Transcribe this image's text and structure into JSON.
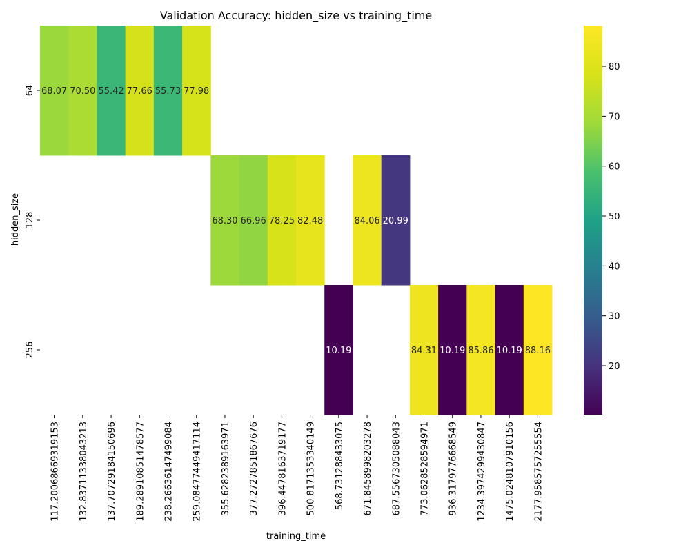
{
  "chart_data": {
    "type": "heatmap",
    "title": "Validation Accuracy: hidden_size vs training_time",
    "xlabel": "training_time",
    "ylabel": "hidden_size",
    "x_categories": [
      "117.20068669319153",
      "132.83711338043213",
      "137.70729184150696",
      "189.28910851478577",
      "238.26636147499084",
      "259.08477449417114",
      "355.6282389163971",
      "377.2727851867676",
      "396.4478163719177",
      "500.8171353340149",
      "568.7312884330750",
      "671.8458998203278",
      "687.5567305088043",
      "773.0628528594971",
      "936.3179776668549",
      "1234.397429943084",
      "1475.0248107910156",
      "2177.9585757255554"
    ],
    "x_tick_labels": [
      "117.20068669319153",
      "132.83711338043213",
      "137.70729184150696",
      "189.28910851478577",
      "238.26636147499084",
      "259.08477449417114",
      "355.6282389163971",
      "377.2727851867676",
      "396.4478163719177",
      "500.8171353340149",
      "568.731288433075",
      "671.8458998203278",
      "687.5567305088043",
      "773.0628528594971",
      "936.3179776668549",
      "1234.3974299430847",
      "1475.0248107910156",
      "2177.9585757255554"
    ],
    "y_categories": [
      "64",
      "128",
      "256"
    ],
    "values": [
      [
        68.07,
        70.5,
        55.42,
        77.66,
        55.73,
        77.98,
        null,
        null,
        null,
        null,
        null,
        null,
        null,
        null,
        null,
        null,
        null,
        null
      ],
      [
        null,
        null,
        null,
        null,
        null,
        null,
        68.3,
        66.96,
        78.25,
        82.48,
        null,
        84.06,
        20.99,
        null,
        null,
        null,
        null,
        null
      ],
      [
        null,
        null,
        null,
        null,
        null,
        null,
        null,
        null,
        null,
        null,
        10.19,
        null,
        null,
        84.31,
        10.19,
        85.86,
        10.19,
        88.16
      ]
    ],
    "value_labels": [
      [
        "68.07",
        "70.50",
        "55.42",
        "77.66",
        "55.73",
        "77.98",
        null,
        null,
        null,
        null,
        null,
        null,
        null,
        null,
        null,
        null,
        null,
        null
      ],
      [
        null,
        null,
        null,
        null,
        null,
        null,
        "68.30",
        "66.96",
        "78.25",
        "82.48",
        null,
        "84.06",
        "20.99",
        null,
        null,
        null,
        null,
        null
      ],
      [
        null,
        null,
        null,
        null,
        null,
        null,
        null,
        null,
        null,
        null,
        "10.19",
        null,
        null,
        "84.31",
        "10.19",
        "85.86",
        "10.19",
        "88.16"
      ]
    ],
    "colormap": "viridis",
    "vmin": 10.19,
    "vmax": 88.16,
    "colorbar_ticks": [
      20,
      30,
      40,
      50,
      60,
      70,
      80
    ],
    "grid": false,
    "legend": "colorbar-right"
  }
}
